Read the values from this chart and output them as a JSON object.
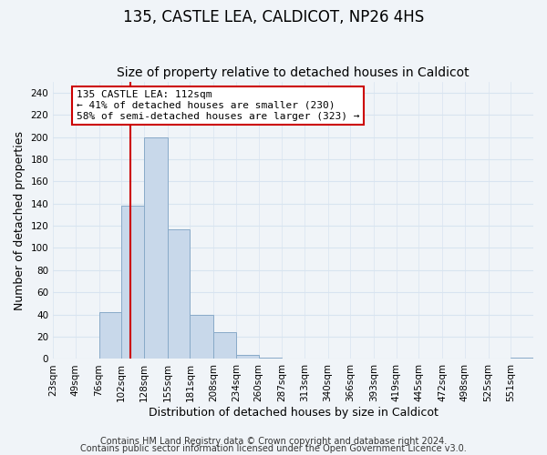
{
  "title": "135, CASTLE LEA, CALDICOT, NP26 4HS",
  "subtitle": "Size of property relative to detached houses in Caldicot",
  "xlabel": "Distribution of detached houses by size in Caldicot",
  "ylabel": "Number of detached properties",
  "footer_line1": "Contains HM Land Registry data © Crown copyright and database right 2024.",
  "footer_line2": "Contains public sector information licensed under the Open Government Licence v3.0.",
  "bin_labels": [
    "23sqm",
    "49sqm",
    "76sqm",
    "102sqm",
    "128sqm",
    "155sqm",
    "181sqm",
    "208sqm",
    "234sqm",
    "260sqm",
    "287sqm",
    "313sqm",
    "340sqm",
    "366sqm",
    "393sqm",
    "419sqm",
    "445sqm",
    "472sqm",
    "498sqm",
    "525sqm",
    "551sqm"
  ],
  "bin_edges": [
    23,
    49,
    76,
    102,
    128,
    155,
    181,
    208,
    234,
    260,
    287,
    313,
    340,
    366,
    393,
    419,
    445,
    472,
    498,
    525,
    551,
    577
  ],
  "bar_values": [
    0,
    0,
    42,
    138,
    200,
    117,
    40,
    24,
    4,
    1,
    0,
    0,
    0,
    0,
    0,
    0,
    0,
    0,
    0,
    0,
    1
  ],
  "bar_color": "#c8d8ea",
  "bar_edgecolor": "#88aac8",
  "vline_x": 112,
  "vline_color": "#cc0000",
  "ylim": [
    0,
    250
  ],
  "yticks": [
    0,
    20,
    40,
    60,
    80,
    100,
    120,
    140,
    160,
    180,
    200,
    220,
    240
  ],
  "annotation_text": "135 CASTLE LEA: 112sqm\n← 41% of detached houses are smaller (230)\n58% of semi-detached houses are larger (323) →",
  "annotation_box_facecolor": "#ffffff",
  "annotation_box_edgecolor": "#cc0000",
  "title_fontsize": 12,
  "subtitle_fontsize": 10,
  "axis_label_fontsize": 9,
  "tick_fontsize": 7.5,
  "annotation_fontsize": 8,
  "footer_fontsize": 7,
  "background_color": "#f0f4f8",
  "grid_color": "#d8e4f0"
}
